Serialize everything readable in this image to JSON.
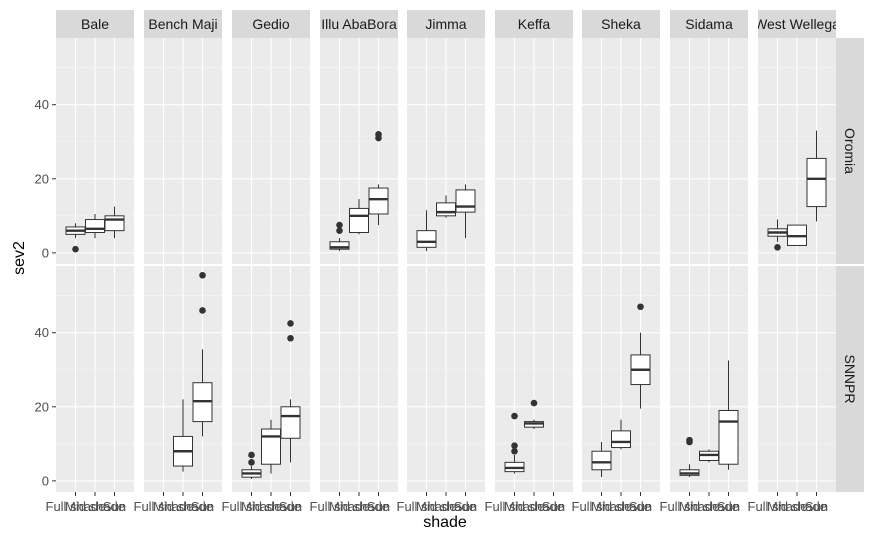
{
  "chart_data": {
    "type": "boxplot",
    "title": "",
    "xlabel": "shade",
    "ylabel": "sev2",
    "ylim": [
      -3,
      58
    ],
    "yticks": [
      0,
      20,
      40
    ],
    "x_categories": [
      "Full shade",
      "Mid shade",
      "Sun"
    ],
    "columns": [
      "Bale",
      "Bench Maji",
      "Gedio",
      "Illu AbaBora",
      "Jimma",
      "Keffa",
      "Sheka",
      "Sidama",
      "West Wellega"
    ],
    "rows": [
      "Oromia",
      "SNNPR"
    ],
    "grid": true,
    "panels": [
      {
        "row": "Oromia",
        "col": "Bale",
        "boxes": [
          {
            "cat": 0,
            "lo": 4,
            "q1": 5,
            "med": 6,
            "q3": 7,
            "hi": 8,
            "outliers": [
              1
            ]
          },
          {
            "cat": 1,
            "lo": 4,
            "q1": 5.5,
            "med": 6.5,
            "q3": 9,
            "hi": 10.5,
            "outliers": []
          },
          {
            "cat": 2,
            "lo": 4,
            "q1": 6,
            "med": 9,
            "q3": 10,
            "hi": 12.5,
            "outliers": []
          }
        ]
      },
      {
        "row": "Oromia",
        "col": "Illu AbaBora",
        "boxes": [
          {
            "cat": 0,
            "lo": 0.5,
            "q1": 1,
            "med": 1.5,
            "q3": 3,
            "hi": 4,
            "outliers": [
              6,
              7.5
            ]
          },
          {
            "cat": 1,
            "lo": 5,
            "q1": 5.5,
            "med": 10,
            "q3": 12,
            "hi": 14.5,
            "outliers": []
          },
          {
            "cat": 2,
            "lo": 7.5,
            "q1": 10.5,
            "med": 14.5,
            "q3": 17.5,
            "hi": 18.5,
            "outliers": [
              31,
              32
            ]
          }
        ]
      },
      {
        "row": "Oromia",
        "col": "Jimma",
        "boxes": [
          {
            "cat": 0,
            "lo": 0.5,
            "q1": 1.5,
            "med": 3,
            "q3": 6,
            "hi": 11.5,
            "outliers": []
          },
          {
            "cat": 1,
            "lo": 9.5,
            "q1": 10,
            "med": 11,
            "q3": 13.5,
            "hi": 15.5,
            "outliers": []
          },
          {
            "cat": 2,
            "lo": 4,
            "q1": 11,
            "med": 12.5,
            "q3": 17,
            "hi": 18.5,
            "outliers": []
          }
        ]
      },
      {
        "row": "Oromia",
        "col": "West Wellega",
        "boxes": [
          {
            "cat": 0,
            "lo": 3,
            "q1": 4.5,
            "med": 5.5,
            "q3": 6.5,
            "hi": 9,
            "outliers": [
              1.5
            ]
          },
          {
            "cat": 1,
            "lo": 2,
            "q1": 2,
            "med": 4.5,
            "q3": 7.5,
            "hi": 7.5,
            "outliers": []
          },
          {
            "cat": 2,
            "lo": 8.5,
            "q1": 12.5,
            "med": 20,
            "q3": 25.5,
            "hi": 33,
            "outliers": []
          }
        ]
      },
      {
        "row": "SNNPR",
        "col": "Bench Maji",
        "boxes": [
          {
            "cat": 1,
            "lo": 2.5,
            "q1": 4,
            "med": 8,
            "q3": 12,
            "hi": 22,
            "outliers": []
          },
          {
            "cat": 2,
            "lo": 12,
            "q1": 16,
            "med": 21.5,
            "q3": 26.5,
            "hi": 35.5,
            "outliers": [
              46,
              55.5
            ]
          }
        ]
      },
      {
        "row": "SNNPR",
        "col": "Gedio",
        "boxes": [
          {
            "cat": 0,
            "lo": 0.5,
            "q1": 1,
            "med": 2,
            "q3": 3,
            "hi": 4,
            "outliers": [
              5,
              7
            ]
          },
          {
            "cat": 1,
            "lo": 2,
            "q1": 4.5,
            "med": 12,
            "q3": 14,
            "hi": 16.5,
            "outliers": []
          },
          {
            "cat": 2,
            "lo": 5,
            "q1": 11.5,
            "med": 17.5,
            "q3": 20,
            "hi": 22,
            "outliers": [
              38.5,
              42.5
            ]
          }
        ]
      },
      {
        "row": "SNNPR",
        "col": "Keffa",
        "boxes": [
          {
            "cat": 0,
            "lo": 2,
            "q1": 2.5,
            "med": 3.5,
            "q3": 5,
            "hi": 7,
            "outliers": [
              8,
              9.5,
              17.5
            ]
          },
          {
            "cat": 1,
            "lo": 14,
            "q1": 14.5,
            "med": 15.5,
            "q3": 16,
            "hi": 16.5,
            "outliers": [
              21
            ]
          }
        ]
      },
      {
        "row": "SNNPR",
        "col": "Sheka",
        "boxes": [
          {
            "cat": 0,
            "lo": 1,
            "q1": 3,
            "med": 5,
            "q3": 8,
            "hi": 10.5,
            "outliers": []
          },
          {
            "cat": 1,
            "lo": 8.5,
            "q1": 9,
            "med": 10.5,
            "q3": 13.5,
            "hi": 16.5,
            "outliers": []
          },
          {
            "cat": 2,
            "lo": 19.5,
            "q1": 26,
            "med": 30,
            "q3": 34,
            "hi": 40,
            "outliers": [
              47
            ]
          }
        ]
      },
      {
        "row": "SNNPR",
        "col": "Sidama",
        "boxes": [
          {
            "cat": 0,
            "lo": 1,
            "q1": 1.5,
            "med": 2,
            "q3": 3,
            "hi": 4.5,
            "outliers": [
              10.5,
              11
            ]
          },
          {
            "cat": 1,
            "lo": 5,
            "q1": 5.5,
            "med": 7,
            "q3": 8,
            "hi": 8.5,
            "outliers": []
          },
          {
            "cat": 2,
            "lo": 3,
            "q1": 4.5,
            "med": 16,
            "q3": 19,
            "hi": 32.5,
            "outliers": []
          }
        ]
      }
    ]
  }
}
